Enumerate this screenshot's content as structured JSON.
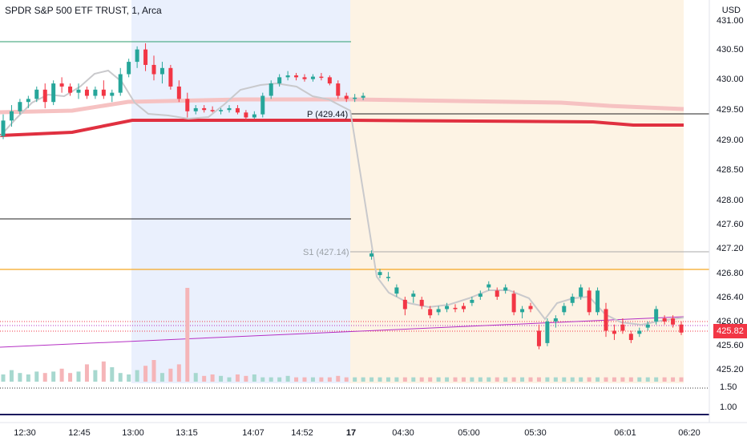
{
  "header": {
    "title": "SPDR S&P 500 ETF TRUST, 1, Arca",
    "currency": "USD"
  },
  "current_price": "425.82",
  "price_axis": [
    "431.00",
    "430.50",
    "430.00",
    "429.50",
    "429.00",
    "428.50",
    "428.00",
    "427.60",
    "427.20",
    "426.80",
    "426.40",
    "426.00",
    "425.60",
    "425.20"
  ],
  "indicator_axis": [
    "1.50",
    "1.00"
  ],
  "time_axis": [
    "12:30",
    "12:45",
    "13:00",
    "13:15",
    "14:07",
    "14:52",
    "17",
    "04:30",
    "05:00",
    "05:30",
    "06:01",
    "06:20"
  ],
  "pivots": [
    {
      "label": "P (429.44)",
      "value": 429.44
    },
    {
      "label": "S1 (427.14)",
      "value": 427.14
    }
  ],
  "colors": {
    "up": "#26a69a",
    "down": "#f23645",
    "session_blue": "#eaf0fd",
    "session_orange": "#fdf3e4",
    "ma_fast": "#c9c9cc",
    "ma_red": "#e03040",
    "ma_pink": "#f6c2c2",
    "trend": "#b530c4",
    "orange_line": "#f5a623"
  },
  "chart_data": {
    "type": "candlestick",
    "symbol": "SPY",
    "interval": "1",
    "ylim": [
      425.0,
      431.2
    ],
    "series": [
      {
        "values": [
          [
            0,
            429.0,
            429.35,
            428.95,
            429.25
          ],
          [
            1,
            429.25,
            429.5,
            429.15,
            429.4
          ],
          [
            2,
            429.4,
            429.6,
            429.35,
            429.55
          ],
          [
            3,
            429.55,
            429.65,
            429.45,
            429.6
          ],
          [
            4,
            429.6,
            429.8,
            429.55,
            429.75
          ],
          [
            5,
            429.75,
            429.85,
            429.45,
            429.55
          ],
          [
            6,
            429.55,
            429.9,
            429.5,
            429.85
          ],
          [
            7,
            429.85,
            429.95,
            429.7,
            429.8
          ],
          [
            8,
            429.8,
            429.85,
            429.65,
            429.7
          ],
          [
            9,
            429.7,
            429.85,
            429.6,
            429.75
          ],
          [
            10,
            429.75,
            429.8,
            429.6,
            429.65
          ],
          [
            11,
            429.65,
            429.8,
            429.6,
            429.75
          ],
          [
            12,
            429.75,
            429.9,
            429.6,
            429.65
          ],
          [
            13,
            429.65,
            429.75,
            429.55,
            429.7
          ],
          [
            14,
            429.7,
            430.1,
            429.65,
            430.0
          ],
          [
            15,
            430.0,
            430.25,
            429.95,
            430.2
          ],
          [
            16,
            430.2,
            430.45,
            430.1,
            430.4
          ],
          [
            17,
            430.4,
            430.5,
            430.05,
            430.15
          ],
          [
            18,
            430.15,
            430.3,
            429.9,
            430.0
          ],
          [
            19,
            430.0,
            430.2,
            429.85,
            430.1
          ],
          [
            20,
            430.1,
            430.15,
            429.75,
            429.8
          ],
          [
            21,
            429.8,
            429.9,
            429.55,
            429.6
          ],
          [
            22,
            429.6,
            429.7,
            429.3,
            429.4
          ],
          [
            23,
            429.4,
            429.5,
            429.35,
            429.45
          ],
          [
            24,
            429.45,
            429.5,
            429.38,
            429.42
          ],
          [
            25,
            429.42,
            429.48,
            429.38,
            429.4
          ],
          [
            26,
            429.4,
            429.45,
            429.35,
            429.42
          ],
          [
            27,
            429.42,
            429.5,
            429.38,
            429.45
          ],
          [
            28,
            429.45,
            429.5,
            429.35,
            429.38
          ],
          [
            29,
            429.38,
            429.42,
            429.25,
            429.3
          ],
          [
            30,
            429.3,
            429.4,
            429.28,
            429.35
          ],
          [
            31,
            429.35,
            429.7,
            429.3,
            429.65
          ],
          [
            32,
            429.65,
            429.9,
            429.6,
            429.85
          ],
          [
            33,
            429.85,
            430.0,
            429.8,
            429.95
          ],
          [
            34,
            429.95,
            430.05,
            429.9,
            429.98
          ],
          [
            35,
            429.98,
            430.02,
            429.9,
            429.95
          ],
          [
            36,
            429.95,
            430.0,
            429.88,
            429.92
          ],
          [
            37,
            429.92,
            430.0,
            429.88,
            429.96
          ],
          [
            38,
            429.96,
            430.02,
            429.9,
            429.95
          ],
          [
            39,
            429.95,
            429.98,
            429.82,
            429.85
          ],
          [
            40,
            429.85,
            429.9,
            429.6,
            429.65
          ],
          [
            41,
            429.65,
            429.7,
            429.55,
            429.6
          ],
          [
            42,
            429.6,
            429.68,
            429.55,
            429.62
          ],
          [
            43,
            429.62,
            429.7,
            429.58,
            429.65
          ],
          [
            44,
            427.05,
            427.15,
            427.0,
            427.1
          ],
          [
            45,
            426.75,
            426.85,
            426.7,
            426.8
          ],
          [
            46,
            426.7,
            426.8,
            426.65,
            426.72
          ],
          [
            47,
            426.45,
            426.6,
            426.4,
            426.55
          ],
          [
            48,
            426.35,
            426.4,
            426.1,
            426.2
          ],
          [
            49,
            426.4,
            426.5,
            426.3,
            426.45
          ],
          [
            50,
            426.35,
            426.4,
            426.2,
            426.25
          ],
          [
            51,
            426.2,
            426.25,
            426.05,
            426.1
          ],
          [
            52,
            426.15,
            426.25,
            426.1,
            426.2
          ],
          [
            53,
            426.2,
            426.3,
            426.15,
            426.25
          ],
          [
            54,
            426.22,
            426.28,
            426.15,
            426.2
          ],
          [
            55,
            426.25,
            426.3,
            426.15,
            426.2
          ],
          [
            56,
            426.3,
            426.4,
            426.25,
            426.35
          ],
          [
            57,
            426.4,
            426.5,
            426.35,
            426.45
          ],
          [
            58,
            426.55,
            426.65,
            426.5,
            426.6
          ],
          [
            59,
            426.5,
            426.55,
            426.35,
            426.4
          ],
          [
            60,
            426.5,
            426.6,
            426.45,
            426.55
          ],
          [
            61,
            426.45,
            426.5,
            426.1,
            426.15
          ],
          [
            62,
            426.15,
            426.25,
            426.05,
            426.2
          ],
          [
            63,
            426.25,
            426.3,
            426.15,
            426.2
          ],
          [
            64,
            425.85,
            425.95,
            425.55,
            425.6
          ],
          [
            65,
            425.65,
            426.05,
            425.6,
            426.0
          ],
          [
            66,
            426.0,
            426.1,
            425.9,
            426.05
          ],
          [
            67,
            426.15,
            426.3,
            426.1,
            426.25
          ],
          [
            68,
            426.3,
            426.45,
            426.25,
            426.4
          ],
          [
            69,
            426.4,
            426.6,
            426.35,
            426.55
          ],
          [
            70,
            426.5,
            426.55,
            426.1,
            426.15
          ],
          [
            71,
            426.15,
            426.55,
            426.1,
            426.5
          ],
          [
            72,
            426.2,
            426.3,
            425.75,
            425.85
          ],
          [
            73,
            425.85,
            425.95,
            425.7,
            425.8
          ],
          [
            74,
            425.95,
            426.05,
            425.8,
            425.85
          ],
          [
            75,
            425.8,
            425.85,
            425.65,
            425.7
          ],
          [
            76,
            425.8,
            425.9,
            425.75,
            425.85
          ],
          [
            77,
            425.9,
            426.0,
            425.85,
            425.95
          ],
          [
            78,
            426.0,
            426.25,
            425.95,
            426.2
          ],
          [
            79,
            426.05,
            426.1,
            425.95,
            426.0
          ],
          [
            80,
            426.05,
            426.1,
            425.9,
            425.95
          ],
          [
            81,
            425.95,
            426.0,
            425.78,
            425.82
          ]
        ]
      },
      {
        "name": "pivot",
        "values": []
      }
    ],
    "volume": [
      5,
      8,
      6,
      5,
      7,
      6,
      7,
      9,
      6,
      7,
      12,
      8,
      14,
      10,
      6,
      5,
      8,
      11,
      15,
      6,
      9,
      12,
      65,
      6,
      4,
      5,
      4,
      3,
      5,
      4,
      5,
      3,
      3,
      3,
      4,
      3,
      3,
      3,
      3,
      3,
      4,
      3,
      3,
      3,
      3,
      3,
      3,
      3,
      3,
      3,
      3,
      3,
      3,
      3,
      3,
      3,
      3,
      3,
      3,
      3,
      3,
      3,
      3,
      3,
      3,
      3,
      3,
      3,
      3,
      3,
      3,
      3,
      3,
      3,
      3,
      3,
      3,
      3,
      3,
      3,
      3,
      3
    ]
  }
}
